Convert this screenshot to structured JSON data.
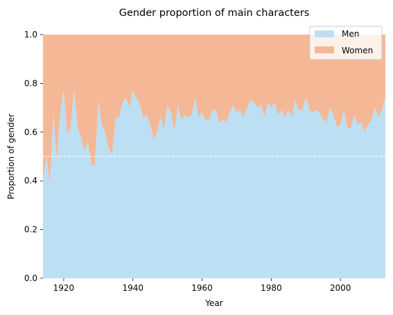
{
  "chart_data": {
    "type": "area",
    "title": "Gender proportion of main characters",
    "xlabel": "Year",
    "ylabel": "Proportion of gender",
    "xlim": [
      1914,
      2013
    ],
    "ylim": [
      0,
      1.0
    ],
    "x_ticks": [
      1920,
      1940,
      1960,
      1980,
      2000
    ],
    "y_ticks": [
      "0.0",
      "0.2",
      "0.4",
      "0.6",
      "0.8",
      "1.0"
    ],
    "grid": false,
    "legend_position": "top-right",
    "reference_line": {
      "y": 0.5,
      "style": "dashed",
      "color": "#ffffff"
    },
    "x": [
      1914,
      1915,
      1916,
      1917,
      1918,
      1919,
      1920,
      1921,
      1922,
      1923,
      1924,
      1925,
      1926,
      1927,
      1928,
      1929,
      1930,
      1931,
      1932,
      1933,
      1934,
      1935,
      1936,
      1937,
      1938,
      1939,
      1940,
      1941,
      1942,
      1943,
      1944,
      1945,
      1946,
      1947,
      1948,
      1949,
      1950,
      1951,
      1952,
      1953,
      1954,
      1955,
      1956,
      1957,
      1958,
      1959,
      1960,
      1961,
      1962,
      1963,
      1964,
      1965,
      1966,
      1967,
      1968,
      1969,
      1970,
      1971,
      1972,
      1973,
      1974,
      1975,
      1976,
      1977,
      1978,
      1979,
      1980,
      1981,
      1982,
      1983,
      1984,
      1985,
      1986,
      1987,
      1988,
      1989,
      1990,
      1991,
      1992,
      1993,
      1994,
      1995,
      1996,
      1997,
      1998,
      1999,
      2000,
      2001,
      2002,
      2003,
      2004,
      2005,
      2006,
      2007,
      2008,
      2009,
      2010,
      2011,
      2012,
      2013
    ],
    "series": [
      {
        "name": "Men",
        "color": "#bcdff3",
        "values": [
          0.4,
          0.5,
          0.38,
          0.67,
          0.48,
          0.68,
          0.77,
          0.59,
          0.62,
          0.77,
          0.62,
          0.58,
          0.52,
          0.56,
          0.47,
          0.46,
          0.72,
          0.63,
          0.6,
          0.53,
          0.51,
          0.66,
          0.66,
          0.72,
          0.74,
          0.7,
          0.77,
          0.74,
          0.71,
          0.66,
          0.67,
          0.63,
          0.57,
          0.6,
          0.66,
          0.61,
          0.71,
          0.68,
          0.6,
          0.71,
          0.65,
          0.67,
          0.66,
          0.67,
          0.74,
          0.66,
          0.68,
          0.65,
          0.65,
          0.69,
          0.69,
          0.64,
          0.65,
          0.64,
          0.68,
          0.71,
          0.68,
          0.69,
          0.66,
          0.7,
          0.73,
          0.72,
          0.7,
          0.71,
          0.66,
          0.72,
          0.7,
          0.72,
          0.67,
          0.69,
          0.66,
          0.69,
          0.66,
          0.73,
          0.69,
          0.69,
          0.74,
          0.69,
          0.68,
          0.69,
          0.68,
          0.65,
          0.64,
          0.7,
          0.67,
          0.62,
          0.63,
          0.69,
          0.62,
          0.61,
          0.67,
          0.63,
          0.64,
          0.6,
          0.63,
          0.65,
          0.7,
          0.66,
          0.69,
          0.74
        ]
      },
      {
        "name": "Women",
        "color": "#f4b897"
      }
    ]
  }
}
